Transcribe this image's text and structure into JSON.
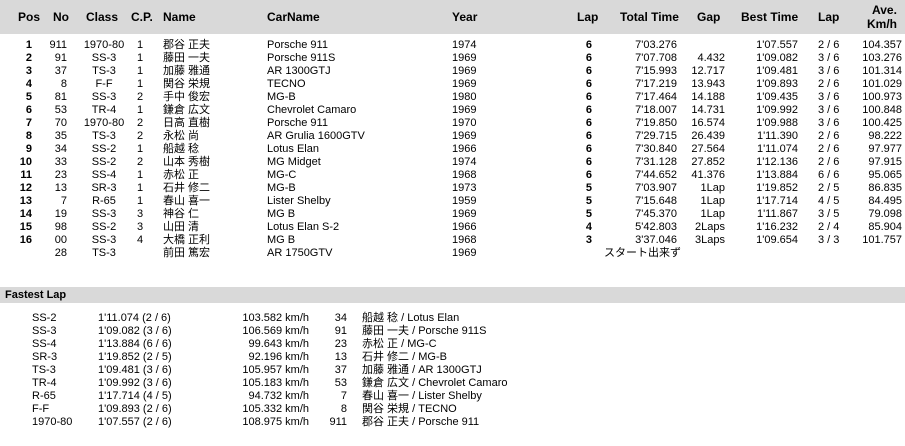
{
  "headers": {
    "pos": "Pos",
    "no": "No",
    "class": "Class",
    "cp": "C.P.",
    "name": "Name",
    "carname": "CarName",
    "year": "Year",
    "lap": "Lap",
    "total": "Total Time",
    "gap": "Gap",
    "best": "Best Time",
    "blap": "Lap",
    "ave1": "Ave.",
    "ave2": "Km/h"
  },
  "results": [
    {
      "pos": "1",
      "no": "911",
      "cls": "1970-80",
      "cp": "1",
      "name": "郡谷 正夫",
      "car": "Porsche 911",
      "year": "1974",
      "lap": "6",
      "total": "7'03.276",
      "gap": "",
      "best": "1'07.557",
      "blap": "2 / 6",
      "ave": "104.357"
    },
    {
      "pos": "2",
      "no": "91",
      "cls": "SS-3",
      "cp": "1",
      "name": "藤田 一夫",
      "car": "Porsche 911S",
      "year": "1969",
      "lap": "6",
      "total": "7'07.708",
      "gap": "4.432",
      "best": "1'09.082",
      "blap": "3 / 6",
      "ave": "103.276"
    },
    {
      "pos": "3",
      "no": "37",
      "cls": "TS-3",
      "cp": "1",
      "name": "加藤 雅通",
      "car": "AR 1300GTJ",
      "year": "1969",
      "lap": "6",
      "total": "7'15.993",
      "gap": "12.717",
      "best": "1'09.481",
      "blap": "3 / 6",
      "ave": "101.314"
    },
    {
      "pos": "4",
      "no": "8",
      "cls": "F-F",
      "cp": "1",
      "name": "関谷 栄規",
      "car": "TECNO",
      "year": "1969",
      "lap": "6",
      "total": "7'17.219",
      "gap": "13.943",
      "best": "1'09.893",
      "blap": "2 / 6",
      "ave": "101.029"
    },
    {
      "pos": "5",
      "no": "81",
      "cls": "SS-3",
      "cp": "2",
      "name": "手中 俊宏",
      "car": "MG-B",
      "year": "1980",
      "lap": "6",
      "total": "7'17.464",
      "gap": "14.188",
      "best": "1'09.435",
      "blap": "3 / 6",
      "ave": "100.973"
    },
    {
      "pos": "6",
      "no": "53",
      "cls": "TR-4",
      "cp": "1",
      "name": "鎌倉 広文",
      "car": "Chevrolet Camaro",
      "year": "1969",
      "lap": "6",
      "total": "7'18.007",
      "gap": "14.731",
      "best": "1'09.992",
      "blap": "3 / 6",
      "ave": "100.848"
    },
    {
      "pos": "7",
      "no": "70",
      "cls": "1970-80",
      "cp": "2",
      "name": "日高 直樹",
      "car": "Porsche 911",
      "year": "1970",
      "lap": "6",
      "total": "7'19.850",
      "gap": "16.574",
      "best": "1'09.988",
      "blap": "3 / 6",
      "ave": "100.425"
    },
    {
      "pos": "8",
      "no": "35",
      "cls": "TS-3",
      "cp": "2",
      "name": "永松 尚",
      "car": "AR Grulia 1600GTV",
      "year": "1969",
      "lap": "6",
      "total": "7'29.715",
      "gap": "26.439",
      "best": "1'11.390",
      "blap": "2 / 6",
      "ave": "98.222"
    },
    {
      "pos": "9",
      "no": "34",
      "cls": "SS-2",
      "cp": "1",
      "name": "船越 稔",
      "car": "Lotus Elan",
      "year": "1966",
      "lap": "6",
      "total": "7'30.840",
      "gap": "27.564",
      "best": "1'11.074",
      "blap": "2 / 6",
      "ave": "97.977"
    },
    {
      "pos": "10",
      "no": "33",
      "cls": "SS-2",
      "cp": "2",
      "name": "山本 秀樹",
      "car": "MG Midget",
      "year": "1974",
      "lap": "6",
      "total": "7'31.128",
      "gap": "27.852",
      "best": "1'12.136",
      "blap": "2 / 6",
      "ave": "97.915"
    },
    {
      "pos": "11",
      "no": "23",
      "cls": "SS-4",
      "cp": "1",
      "name": "赤松 正",
      "car": "MG-C",
      "year": "1968",
      "lap": "6",
      "total": "7'44.652",
      "gap": "41.376",
      "best": "1'13.884",
      "blap": "6 / 6",
      "ave": "95.065"
    },
    {
      "pos": "12",
      "no": "13",
      "cls": "SR-3",
      "cp": "1",
      "name": "石井 修二",
      "car": "MG-B",
      "year": "1973",
      "lap": "5",
      "total": "7'03.907",
      "gap": "1Lap",
      "best": "1'19.852",
      "blap": "2 / 5",
      "ave": "86.835"
    },
    {
      "pos": "13",
      "no": "7",
      "cls": "R-65",
      "cp": "1",
      "name": "春山 喜一",
      "car": "Lister Shelby",
      "year": "1959",
      "lap": "5",
      "total": "7'15.648",
      "gap": "1Lap",
      "best": "1'17.714",
      "blap": "4 / 5",
      "ave": "84.495"
    },
    {
      "pos": "14",
      "no": "19",
      "cls": "SS-3",
      "cp": "3",
      "name": "神谷 仁",
      "car": "MG B",
      "year": "1969",
      "lap": "5",
      "total": "7'45.370",
      "gap": "1Lap",
      "best": "1'11.867",
      "blap": "3 / 5",
      "ave": "79.098"
    },
    {
      "pos": "15",
      "no": "98",
      "cls": "SS-2",
      "cp": "3",
      "name": "山田 清",
      "car": "Lotus Elan S-2",
      "year": "1966",
      "lap": "4",
      "total": "5'42.803",
      "gap": "2Laps",
      "best": "1'16.232",
      "blap": "2 / 4",
      "ave": "85.904"
    },
    {
      "pos": "16",
      "no": "00",
      "cls": "SS-3",
      "cp": "4",
      "name": "大橋 正利",
      "car": "MG B",
      "year": "1968",
      "lap": "3",
      "total": "3'37.046",
      "gap": "3Laps",
      "best": "1'09.654",
      "blap": "3 / 3",
      "ave": "101.757"
    },
    {
      "pos": "",
      "no": "28",
      "cls": "TS-3",
      "cp": "",
      "name": "前田 篤宏",
      "car": "AR 1750GTV",
      "year": "1969",
      "lap": "",
      "total": "スタート出来ず",
      "gap": "",
      "best": "",
      "blap": "",
      "ave": ""
    }
  ],
  "fastest_title": "Fastest Lap",
  "fastest": [
    {
      "cls": "SS-2",
      "time": "1'11.074 (2 / 6)",
      "speed": "103.582 km/h",
      "no": "34",
      "who": "船越 稔 / Lotus Elan"
    },
    {
      "cls": "SS-3",
      "time": "1'09.082 (3 / 6)",
      "speed": "106.569 km/h",
      "no": "91",
      "who": "藤田 一夫 / Porsche 911S"
    },
    {
      "cls": "SS-4",
      "time": "1'13.884 (6 / 6)",
      "speed": "99.643 km/h",
      "no": "23",
      "who": "赤松 正 / MG-C"
    },
    {
      "cls": "SR-3",
      "time": "1'19.852 (2 / 5)",
      "speed": "92.196 km/h",
      "no": "13",
      "who": "石井 修二 / MG-B"
    },
    {
      "cls": "TS-3",
      "time": "1'09.481 (3 / 6)",
      "speed": "105.957 km/h",
      "no": "37",
      "who": "加藤 雅通 / AR 1300GTJ"
    },
    {
      "cls": "TR-4",
      "time": "1'09.992 (3 / 6)",
      "speed": "105.183 km/h",
      "no": "53",
      "who": "鎌倉 広文 / Chevrolet Camaro"
    },
    {
      "cls": "R-65",
      "time": "1'17.714 (4 / 5)",
      "speed": "94.732 km/h",
      "no": "7",
      "who": "春山 喜一 / Lister Shelby"
    },
    {
      "cls": "F-F",
      "time": "1'09.893 (2 / 6)",
      "speed": "105.332 km/h",
      "no": "8",
      "who": "関谷 栄規 / TECNO"
    },
    {
      "cls": "1970-80",
      "time": "1'07.557 (2 / 6)",
      "speed": "108.975 km/h",
      "no": "911",
      "who": "郡谷 正夫 / Porsche 911"
    }
  ]
}
